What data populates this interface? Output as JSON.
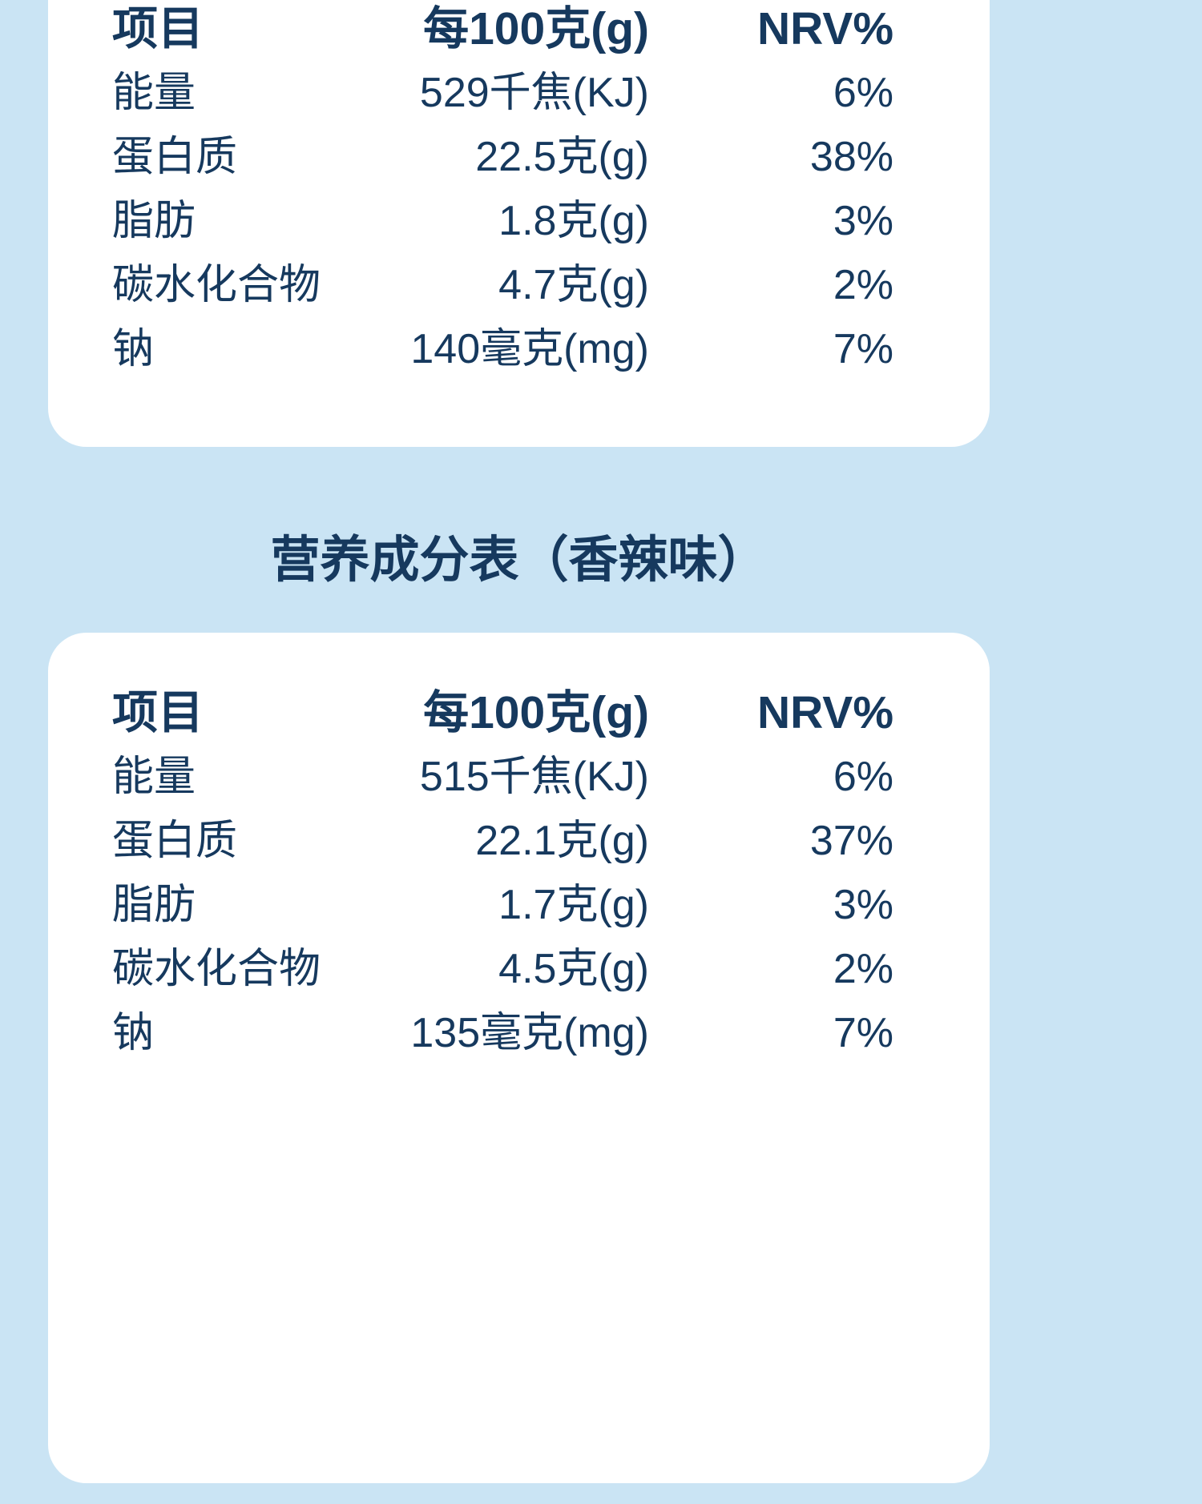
{
  "page": {
    "background_color": "#cae4f4",
    "card_color": "#ffffff",
    "text_color": "#16395e"
  },
  "section_title": "营养成分表（香辣味）",
  "tables": [
    {
      "id": "table-top",
      "headers": [
        "项目",
        "每100克(g)",
        "NRV%"
      ],
      "rows": [
        [
          "能量",
          "529千焦(KJ)",
          "6%"
        ],
        [
          "蛋白质",
          "22.5克(g)",
          "38%"
        ],
        [
          "脂肪",
          "1.8克(g)",
          "3%"
        ],
        [
          "碳水化合物",
          "4.7克(g)",
          "2%"
        ],
        [
          "钠",
          "140毫克(mg)",
          "7%"
        ]
      ]
    },
    {
      "id": "table-spicy",
      "headers": [
        "项目",
        "每100克(g)",
        "NRV%"
      ],
      "rows": [
        [
          "能量",
          "515千焦(KJ)",
          "6%"
        ],
        [
          "蛋白质",
          "22.1克(g)",
          "37%"
        ],
        [
          "脂肪",
          "1.7克(g)",
          "3%"
        ],
        [
          "碳水化合物",
          "4.5克(g)",
          "2%"
        ],
        [
          "钠",
          "135毫克(mg)",
          "7%"
        ]
      ]
    }
  ]
}
